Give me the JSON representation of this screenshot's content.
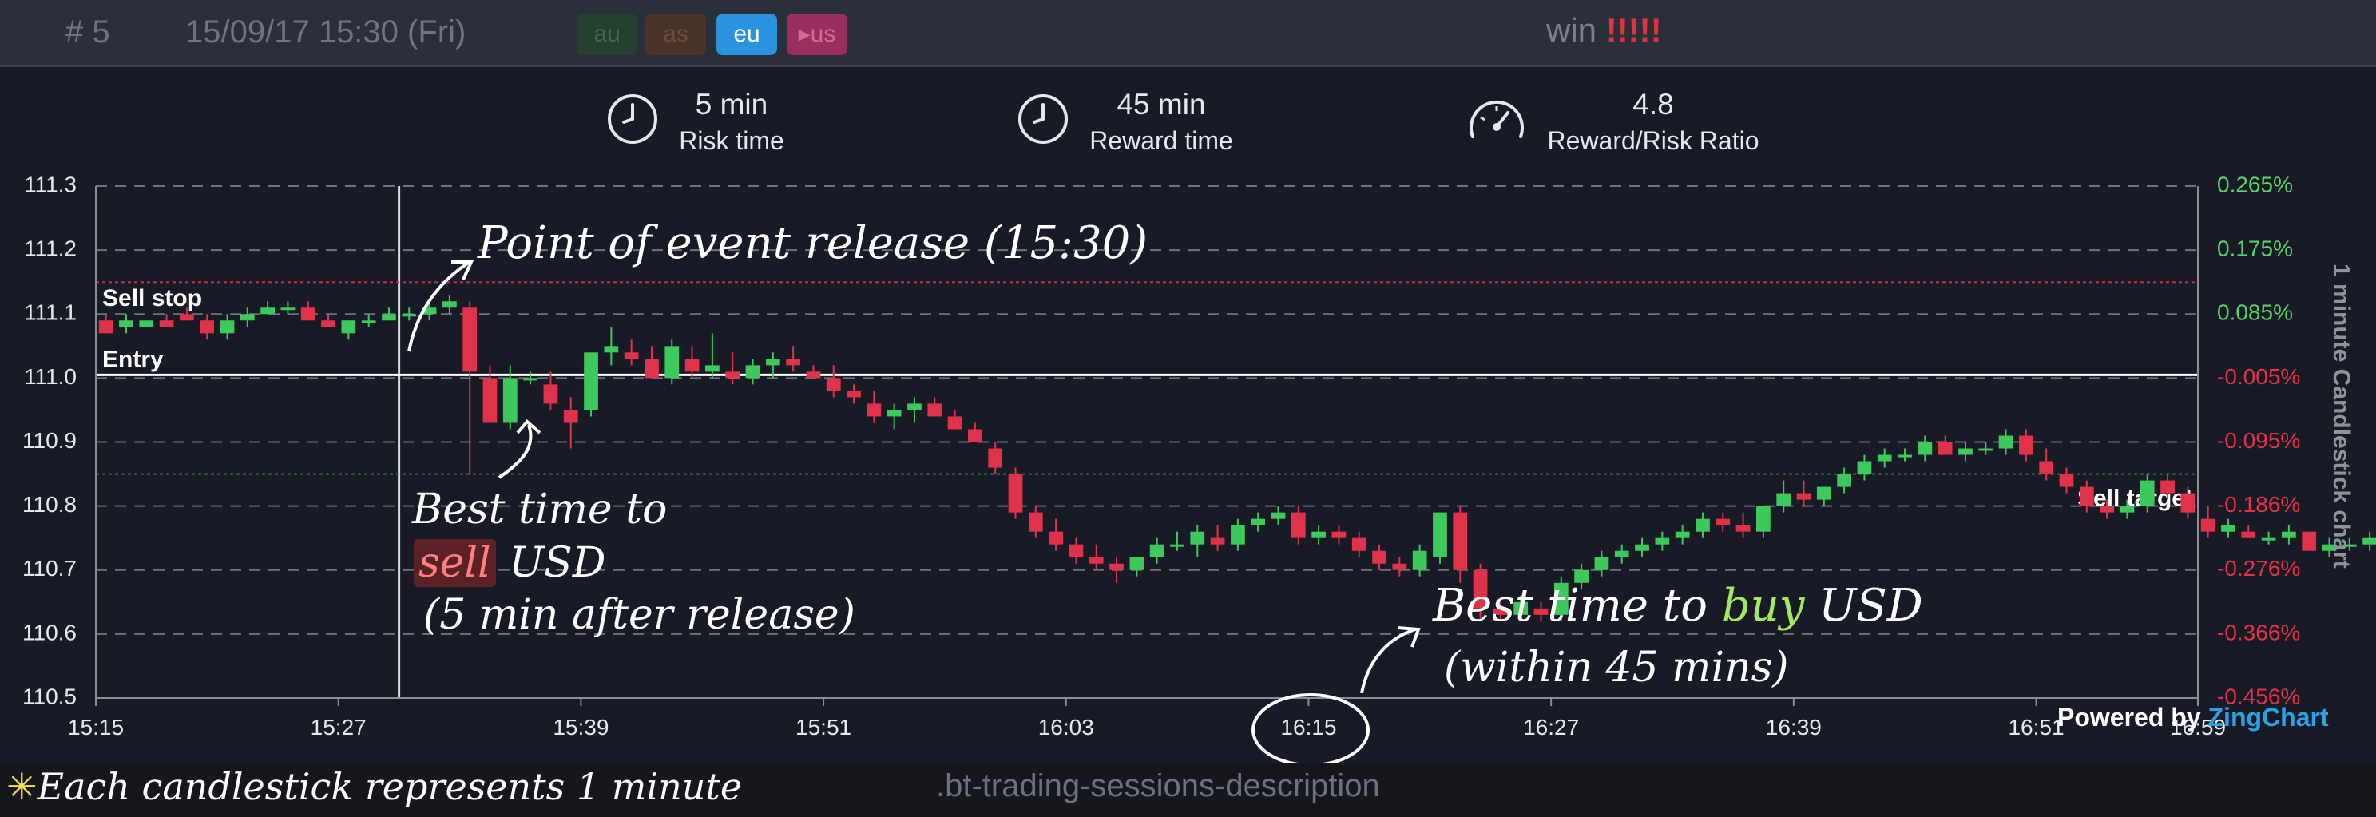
{
  "header": {
    "event_number": "# 5",
    "datetime": "15/09/17 15:30 (Fri)",
    "sessions": [
      "au",
      "as",
      "eu",
      "▸us"
    ],
    "result_label": "win",
    "result_marks": "!!!!!"
  },
  "stats": [
    {
      "value": "5 min",
      "label": "Risk time",
      "icon": "clock-icon"
    },
    {
      "value": "45 min",
      "label": "Reward time",
      "icon": "clock-icon"
    },
    {
      "value": "4.8",
      "label": "Reward/Risk Ratio",
      "icon": "speedometer-icon"
    }
  ],
  "chart_data": {
    "type": "candlestick",
    "ylabel_right": "1 minute Candlestick chart",
    "ylim": [
      110.5,
      111.3
    ],
    "y_ticks_left": [
      "111.3",
      "111.2",
      "111.1",
      "111.0",
      "110.9",
      "110.8",
      "110.7",
      "110.6",
      "110.5"
    ],
    "y_ticks_right": [
      "0.265%",
      "0.175%",
      "0.085%",
      "-0.005%",
      "-0.095%",
      "-0.186%",
      "-0.276%",
      "-0.366%",
      "-0.456%"
    ],
    "x_ticks": [
      "15:15",
      "15:27",
      "15:39",
      "15:51",
      "16:03",
      "16:15",
      "16:27",
      "16:39",
      "16:51",
      "16:59"
    ],
    "grid": true,
    "levels": {
      "sell_stop": {
        "label": "Sell stop",
        "value": 111.15
      },
      "entry": {
        "label": "Entry",
        "value": 111.005
      },
      "sell_target": {
        "label": "Sell target",
        "value": 110.85
      }
    },
    "event_time": "15:30",
    "candles": [
      [
        111.09,
        111.1,
        111.07,
        111.07
      ],
      [
        111.08,
        111.1,
        111.07,
        111.09
      ],
      [
        111.08,
        111.09,
        111.08,
        111.09
      ],
      [
        111.09,
        111.1,
        111.08,
        111.08
      ],
      [
        111.1,
        111.11,
        111.09,
        111.09
      ],
      [
        111.09,
        111.1,
        111.06,
        111.07
      ],
      [
        111.07,
        111.1,
        111.06,
        111.09
      ],
      [
        111.09,
        111.11,
        111.08,
        111.1
      ],
      [
        111.1,
        111.12,
        111.1,
        111.11
      ],
      [
        111.11,
        111.12,
        111.1,
        111.11
      ],
      [
        111.11,
        111.12,
        111.09,
        111.09
      ],
      [
        111.09,
        111.1,
        111.08,
        111.08
      ],
      [
        111.07,
        111.09,
        111.06,
        111.09
      ],
      [
        111.09,
        111.1,
        111.08,
        111.09
      ],
      [
        111.09,
        111.11,
        111.09,
        111.1
      ],
      [
        111.1,
        111.11,
        111.09,
        111.1
      ],
      [
        111.1,
        111.12,
        111.09,
        111.11
      ],
      [
        111.11,
        111.13,
        111.1,
        111.12
      ],
      [
        111.11,
        111.12,
        110.85,
        111.01
      ],
      [
        111.0,
        111.02,
        110.93,
        110.93
      ],
      [
        110.93,
        111.02,
        110.92,
        111.0
      ],
      [
        111.0,
        111.01,
        110.99,
        111.0
      ],
      [
        110.99,
        111.01,
        110.95,
        110.96
      ],
      [
        110.95,
        110.97,
        110.89,
        110.93
      ],
      [
        110.95,
        111.04,
        110.94,
        111.04
      ],
      [
        111.04,
        111.08,
        111.02,
        111.05
      ],
      [
        111.04,
        111.06,
        111.02,
        111.03
      ],
      [
        111.03,
        111.05,
        111.0,
        111.0
      ],
      [
        111.0,
        111.06,
        110.99,
        111.05
      ],
      [
        111.03,
        111.05,
        111.0,
        111.01
      ],
      [
        111.01,
        111.07,
        111.0,
        111.02
      ],
      [
        111.01,
        111.04,
        110.99,
        111.0
      ],
      [
        111.0,
        111.03,
        110.99,
        111.02
      ],
      [
        111.02,
        111.04,
        111.0,
        111.03
      ],
      [
        111.03,
        111.05,
        111.01,
        111.02
      ],
      [
        111.01,
        111.02,
        111.0,
        111.0
      ],
      [
        111.0,
        111.02,
        110.97,
        110.98
      ],
      [
        110.98,
        110.99,
        110.96,
        110.97
      ],
      [
        110.96,
        110.98,
        110.93,
        110.94
      ],
      [
        110.94,
        110.96,
        110.92,
        110.95
      ],
      [
        110.95,
        110.97,
        110.93,
        110.96
      ],
      [
        110.96,
        110.97,
        110.94,
        110.94
      ],
      [
        110.94,
        110.95,
        110.92,
        110.92
      ],
      [
        110.92,
        110.93,
        110.9,
        110.9
      ],
      [
        110.89,
        110.9,
        110.85,
        110.86
      ],
      [
        110.85,
        110.86,
        110.78,
        110.79
      ],
      [
        110.79,
        110.8,
        110.75,
        110.76
      ],
      [
        110.76,
        110.78,
        110.73,
        110.74
      ],
      [
        110.74,
        110.75,
        110.71,
        110.72
      ],
      [
        110.72,
        110.74,
        110.7,
        110.71
      ],
      [
        110.71,
        110.72,
        110.68,
        110.7
      ],
      [
        110.7,
        110.72,
        110.69,
        110.72
      ],
      [
        110.72,
        110.75,
        110.71,
        110.74
      ],
      [
        110.74,
        110.76,
        110.73,
        110.74
      ],
      [
        110.74,
        110.77,
        110.72,
        110.76
      ],
      [
        110.75,
        110.77,
        110.73,
        110.74
      ],
      [
        110.74,
        110.78,
        110.73,
        110.77
      ],
      [
        110.77,
        110.79,
        110.76,
        110.78
      ],
      [
        110.78,
        110.8,
        110.77,
        110.79
      ],
      [
        110.79,
        110.8,
        110.74,
        110.75
      ],
      [
        110.75,
        110.77,
        110.74,
        110.76
      ],
      [
        110.76,
        110.77,
        110.74,
        110.75
      ],
      [
        110.75,
        110.76,
        110.72,
        110.73
      ],
      [
        110.73,
        110.74,
        110.7,
        110.71
      ],
      [
        110.71,
        110.72,
        110.69,
        110.7
      ],
      [
        110.7,
        110.74,
        110.69,
        110.73
      ],
      [
        110.72,
        110.79,
        110.71,
        110.79
      ],
      [
        110.79,
        110.8,
        110.68,
        110.7
      ],
      [
        110.7,
        110.71,
        110.62,
        110.64
      ],
      [
        110.64,
        110.65,
        110.62,
        110.63
      ],
      [
        110.63,
        110.66,
        110.62,
        110.65
      ],
      [
        110.64,
        110.65,
        110.62,
        110.63
      ],
      [
        110.63,
        110.69,
        110.62,
        110.68
      ],
      [
        110.68,
        110.71,
        110.67,
        110.7
      ],
      [
        110.7,
        110.73,
        110.69,
        110.72
      ],
      [
        110.72,
        110.74,
        110.71,
        110.73
      ],
      [
        110.73,
        110.75,
        110.72,
        110.74
      ],
      [
        110.74,
        110.76,
        110.73,
        110.75
      ],
      [
        110.75,
        110.77,
        110.74,
        110.76
      ],
      [
        110.76,
        110.79,
        110.75,
        110.78
      ],
      [
        110.78,
        110.79,
        110.76,
        110.77
      ],
      [
        110.77,
        110.79,
        110.75,
        110.76
      ],
      [
        110.76,
        110.8,
        110.75,
        110.8
      ],
      [
        110.8,
        110.84,
        110.79,
        110.82
      ],
      [
        110.82,
        110.84,
        110.8,
        110.81
      ],
      [
        110.81,
        110.83,
        110.8,
        110.83
      ],
      [
        110.83,
        110.86,
        110.82,
        110.85
      ],
      [
        110.85,
        110.88,
        110.84,
        110.87
      ],
      [
        110.87,
        110.89,
        110.86,
        110.88
      ],
      [
        110.88,
        110.89,
        110.87,
        110.88
      ],
      [
        110.88,
        110.91,
        110.87,
        110.9
      ],
      [
        110.9,
        110.91,
        110.88,
        110.88
      ],
      [
        110.88,
        110.9,
        110.87,
        110.89
      ],
      [
        110.89,
        110.9,
        110.88,
        110.89
      ],
      [
        110.89,
        110.92,
        110.88,
        110.91
      ],
      [
        110.91,
        110.92,
        110.87,
        110.88
      ],
      [
        110.87,
        110.89,
        110.84,
        110.85
      ],
      [
        110.85,
        110.86,
        110.82,
        110.83
      ],
      [
        110.83,
        110.84,
        110.79,
        110.8
      ],
      [
        110.8,
        110.81,
        110.78,
        110.79
      ],
      [
        110.79,
        110.81,
        110.78,
        110.8
      ],
      [
        110.8,
        110.85,
        110.79,
        110.84
      ],
      [
        110.84,
        110.85,
        110.81,
        110.82
      ],
      [
        110.82,
        110.83,
        110.78,
        110.79
      ],
      [
        110.78,
        110.8,
        110.75,
        110.76
      ],
      [
        110.76,
        110.78,
        110.75,
        110.77
      ],
      [
        110.76,
        110.77,
        110.75,
        110.75
      ],
      [
        110.75,
        110.76,
        110.74,
        110.75
      ],
      [
        110.75,
        110.77,
        110.74,
        110.76
      ],
      [
        110.76,
        110.76,
        110.73,
        110.73
      ],
      [
        110.73,
        110.75,
        110.72,
        110.74
      ],
      [
        110.74,
        110.75,
        110.73,
        110.74
      ],
      [
        110.74,
        110.76,
        110.73,
        110.75
      ],
      [
        110.75,
        110.76,
        110.72,
        110.73
      ]
    ]
  },
  "annotations": {
    "event_release": "Point of event release (15:30)",
    "sell_line1": "Best time to",
    "sell_word": "sell",
    "sell_line2_rest": "USD",
    "sell_line3": "(5 min after release)",
    "buy_line1_a": "Best time to",
    "buy_word": "buy",
    "buy_line1_b": "USD",
    "buy_line2": "(within 45 mins)"
  },
  "footer": {
    "star": "✳",
    "note": "Each candlestick represents 1 minute",
    "class_label": ".bt-trading-sessions-description"
  },
  "credit": {
    "powered_by": "Powered by",
    "brand": "ZingChart"
  },
  "colors": {
    "up": "#3ec95c",
    "down": "#e0334a",
    "bg": "#181b26",
    "grid": "#6f737c",
    "right_axis_text": "#58d36a"
  }
}
